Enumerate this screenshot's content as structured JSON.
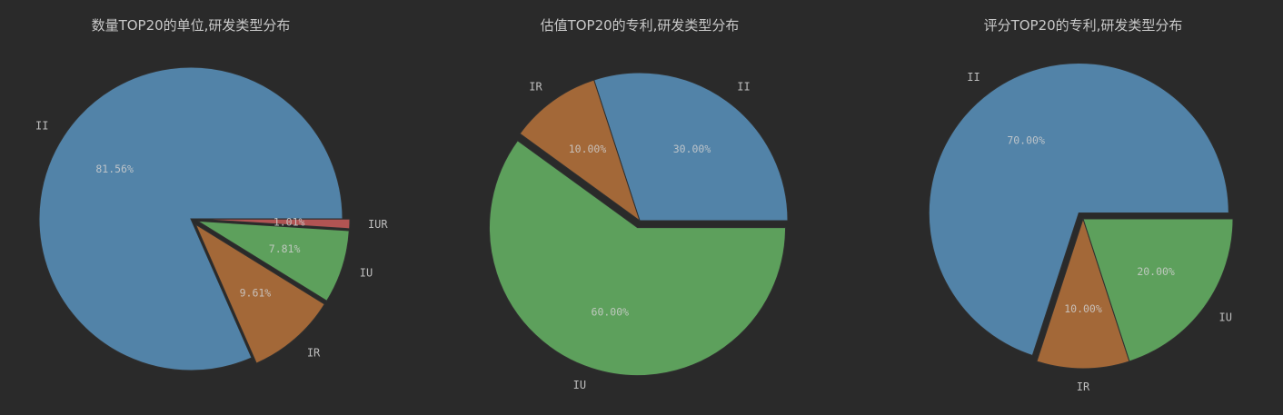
{
  "chart_data": [
    {
      "type": "pie",
      "title": "数量TOP20的单位,研发类型分布",
      "slices": [
        {
          "label": "II",
          "value": 81.56,
          "pct_label": "81.56%",
          "color": "#5283a8",
          "explode": false
        },
        {
          "label": "IR",
          "value": 9.61,
          "pct_label": "9.61%",
          "color": "#a36838",
          "explode": true
        },
        {
          "label": "IU",
          "value": 7.81,
          "pct_label": "7.81%",
          "color": "#5da05c",
          "explode": true
        },
        {
          "label": "IUR",
          "value": 1.01,
          "pct_label": "1.01%",
          "color": "#b15453",
          "explode": true
        }
      ]
    },
    {
      "type": "pie",
      "title": "估值TOP20的专利,研发类型分布",
      "slices": [
        {
          "label": "II",
          "value": 30.0,
          "pct_label": "30.00%",
          "color": "#5283a8",
          "explode": false
        },
        {
          "label": "IR",
          "value": 10.0,
          "pct_label": "10.00%",
          "color": "#a36838",
          "explode": false
        },
        {
          "label": "IU",
          "value": 60.0,
          "pct_label": "60.00%",
          "color": "#5da05c",
          "explode": true
        }
      ]
    },
    {
      "type": "pie",
      "title": "评分TOP20的专利,研发类型分布",
      "slices": [
        {
          "label": "II",
          "value": 70.0,
          "pct_label": "70.00%",
          "color": "#5283a8",
          "explode": true
        },
        {
          "label": "IR",
          "value": 10.0,
          "pct_label": "10.00%",
          "color": "#a36838",
          "explode": false
        },
        {
          "label": "IU",
          "value": 20.0,
          "pct_label": "20.00%",
          "color": "#5da05c",
          "explode": false
        }
      ]
    }
  ]
}
